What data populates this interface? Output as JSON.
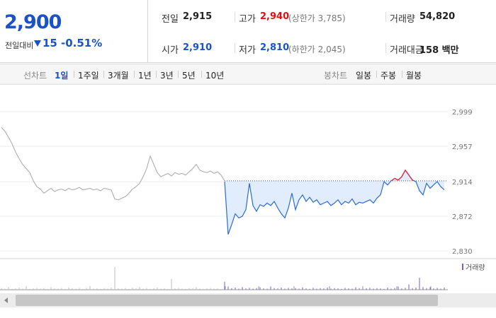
{
  "quote": {
    "price": "2,900",
    "change_label": "전일대비",
    "change": "15",
    "change_pct": "-0.51%"
  },
  "summary": [
    {
      "label": "전일",
      "value": "2,915",
      "color": "#222222"
    },
    {
      "label": "고가",
      "value": "2,940",
      "color": "#e01010",
      "extra": "(상한가 3,785)"
    },
    {
      "label": "거래량",
      "value": "54,820",
      "color": "#222222"
    },
    {
      "label": "시가",
      "value": "2,910",
      "color": "#1a52c9"
    },
    {
      "label": "저가",
      "value": "2,810",
      "color": "#1a52c9",
      "extra": "(하한가 2,045)"
    },
    {
      "label": "거래대금",
      "value": "158 백만",
      "color": "#222222"
    }
  ],
  "tabs": {
    "line_label": "선차트",
    "line_periods": [
      "1일",
      "1주일",
      "3개월",
      "1년",
      "3년",
      "5년",
      "10년"
    ],
    "candle_label": "봉차트",
    "candle_periods": [
      "일봉",
      "주봉",
      "월봉"
    ]
  },
  "chart_data": {
    "type": "line",
    "ylim": [
      2830,
      2999
    ],
    "yticks": [
      {
        "value": 2999,
        "label": "2,999"
      },
      {
        "value": 2957,
        "label": "2,957"
      },
      {
        "value": 2914,
        "label": "2,914"
      },
      {
        "value": 2872,
        "label": "2,872"
      },
      {
        "value": 2830,
        "label": "2,830"
      }
    ],
    "baseline": 2915,
    "up_color": "#e8202a",
    "fill_color": "#dce9fb",
    "series": [
      {
        "color": "#b4b4b4",
        "values": [
          2980,
          2975,
          2968,
          2960,
          2950,
          2942,
          2935,
          2930,
          2925,
          2915,
          2908,
          2905,
          2900,
          2903,
          2906,
          2902,
          2904,
          2905,
          2903,
          2906,
          2904,
          2905,
          2907,
          2904,
          2905,
          2906,
          2904,
          2905,
          2903,
          2906,
          2905,
          2904,
          2893,
          2892,
          2894,
          2896,
          2900,
          2905,
          2908,
          2912,
          2920,
          2930,
          2945,
          2935,
          2925,
          2920,
          2922,
          2924,
          2921,
          2925,
          2923,
          2924,
          2922,
          2926,
          2930,
          2935,
          2928,
          2926,
          2925,
          2927,
          2924,
          2926,
          2922,
          2915,
          null,
          null,
          null,
          null,
          null,
          null,
          null,
          null,
          null,
          null,
          null,
          null,
          null,
          null,
          null,
          null,
          null,
          null,
          null,
          null,
          null,
          null,
          null,
          null,
          null,
          null,
          null,
          null,
          null,
          null,
          null,
          null,
          null,
          null,
          null,
          null,
          null,
          null,
          null,
          null,
          null,
          null,
          null,
          null,
          null,
          null,
          null,
          null,
          null,
          null,
          null,
          null,
          null,
          null,
          null,
          null,
          null,
          null
        ]
      },
      {
        "color": "#2a6ad8",
        "values": [
          null,
          null,
          null,
          null,
          null,
          null,
          null,
          null,
          null,
          null,
          null,
          null,
          null,
          null,
          null,
          null,
          null,
          null,
          null,
          null,
          null,
          null,
          null,
          null,
          null,
          null,
          null,
          null,
          null,
          null,
          null,
          null,
          null,
          null,
          null,
          null,
          null,
          null,
          null,
          null,
          null,
          null,
          null,
          null,
          null,
          null,
          null,
          null,
          null,
          null,
          null,
          null,
          null,
          null,
          null,
          null,
          null,
          null,
          null,
          null,
          null,
          null,
          null,
          2914,
          2850,
          2862,
          2875,
          2870,
          2872,
          2880,
          2912,
          2885,
          2878,
          2886,
          2884,
          2888,
          2885,
          2890,
          2882,
          2875,
          2870,
          2882,
          2900,
          2880,
          2892,
          2898,
          2890,
          2895,
          2889,
          2892,
          2886,
          2888,
          2890,
          2885,
          2888,
          2892,
          2886,
          2890,
          2888,
          2893,
          2886,
          2889,
          2888,
          2890,
          2892,
          2888,
          2894,
          2898,
          2914,
          2910,
          2915,
          2918,
          2916,
          2920,
          2928,
          2922,
          2916,
          2914,
          2903,
          2898,
          2912,
          2906,
          2910,
          2914,
          2908,
          2904
        ]
      }
    ],
    "volume": {
      "name": "거래량",
      "ylim": [
        0,
        100
      ],
      "series": [
        {
          "color": "#bdbdbd",
          "values": [
            6,
            4,
            10,
            3,
            5,
            8,
            4,
            12,
            3,
            5,
            7,
            4,
            6,
            3,
            9,
            5,
            4,
            6,
            3,
            8,
            5,
            4,
            7,
            3,
            6,
            14,
            4,
            5,
            3,
            6,
            4,
            8,
            85,
            5,
            4,
            6,
            3,
            7,
            5,
            10,
            4,
            6,
            3,
            5,
            8,
            4,
            6,
            3,
            40,
            5,
            7,
            4,
            3,
            6,
            5,
            9,
            4,
            3,
            5,
            6,
            4,
            5,
            3,
            null,
            null,
            null,
            null,
            null,
            null,
            null,
            null,
            null,
            null,
            null,
            null,
            null,
            null,
            null,
            null,
            null,
            null,
            null,
            null,
            null,
            null,
            null,
            null,
            null,
            null,
            null,
            null,
            null,
            null,
            null,
            null,
            null,
            null,
            null,
            null,
            null,
            null,
            null,
            null,
            null,
            null,
            null,
            null,
            null,
            null,
            null,
            null,
            null,
            null,
            null,
            null,
            null,
            null,
            null,
            null,
            null,
            null,
            null,
            null,
            null
          ]
        },
        {
          "color": "#7a5cc8",
          "values": [
            null,
            null,
            null,
            null,
            null,
            null,
            null,
            null,
            null,
            null,
            null,
            null,
            null,
            null,
            null,
            null,
            null,
            null,
            null,
            null,
            null,
            null,
            null,
            null,
            null,
            null,
            null,
            null,
            null,
            null,
            null,
            null,
            null,
            null,
            null,
            null,
            null,
            null,
            null,
            null,
            null,
            null,
            null,
            null,
            null,
            null,
            null,
            null,
            null,
            null,
            null,
            null,
            null,
            null,
            null,
            null,
            null,
            null,
            null,
            null,
            null,
            null,
            null,
            30,
            12,
            6,
            8,
            4,
            10,
            5,
            7,
            4,
            6,
            9,
            5,
            4,
            12,
            6,
            5,
            8,
            4,
            7,
            5,
            6,
            4,
            9,
            5,
            3,
            7,
            4,
            6,
            5,
            8,
            4,
            6,
            5,
            3,
            7,
            5,
            4,
            9,
            6,
            4,
            5,
            7,
            4,
            6,
            5,
            3,
            8,
            4,
            6,
            12,
            5,
            7,
            20,
            6,
            8,
            45,
            10,
            6,
            9,
            5,
            7,
            4,
            8
          ]
        }
      ]
    }
  }
}
